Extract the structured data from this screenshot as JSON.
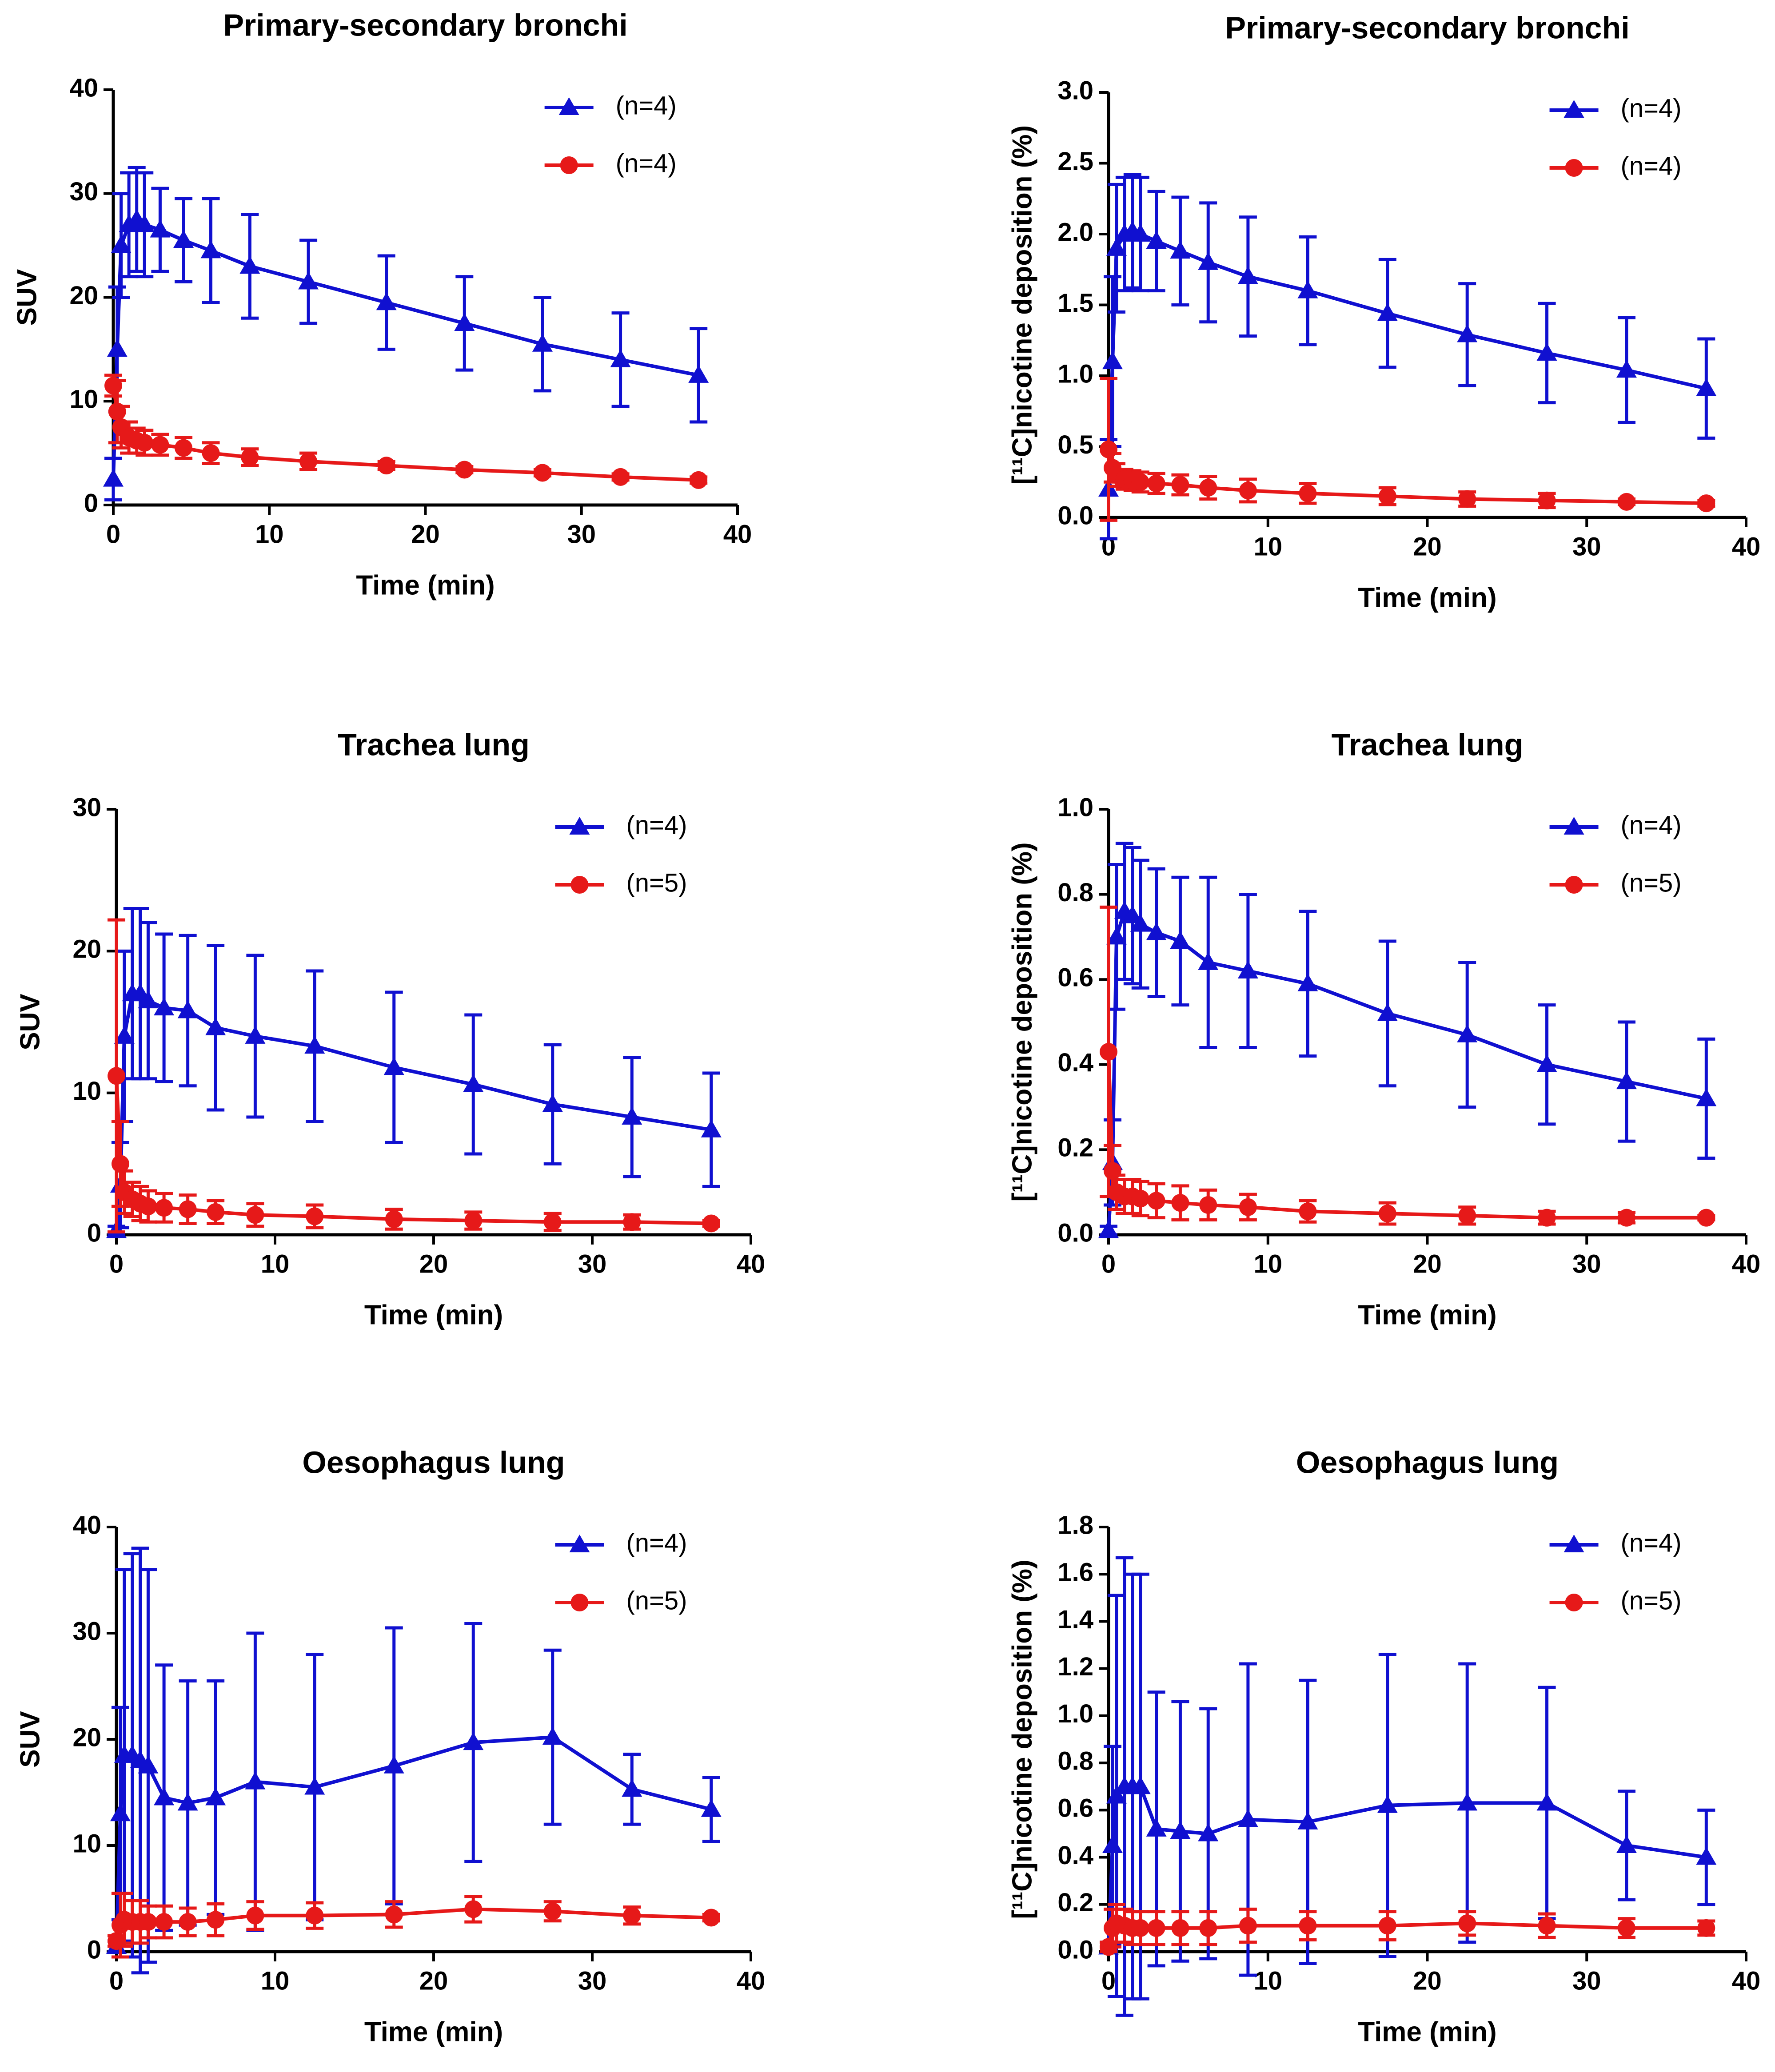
{
  "chart_data": [
    {
      "type": "line",
      "title": "Primary-secondary bronchi",
      "xlabel": "Time (min)",
      "ylabel": "SUV",
      "x": [
        0,
        0.25,
        0.5,
        1,
        1.5,
        2,
        3,
        4.5,
        6.25,
        8.75,
        12.5,
        17.5,
        22.5,
        27.5,
        32.5,
        37.5
      ],
      "xlim": [
        0,
        40
      ],
      "xticks": [
        0,
        10,
        20,
        30,
        40
      ],
      "ylim": [
        0,
        40
      ],
      "yticks": [
        0,
        10,
        20,
        30,
        40
      ],
      "series": [
        {
          "name": "(n=4)",
          "color": "#1010d0",
          "marker": "triangle",
          "values": [
            2.5,
            15,
            25,
            27,
            27.5,
            27,
            26.5,
            25.5,
            24.5,
            23,
            21.5,
            19.5,
            17.5,
            15.5,
            14,
            12.5
          ],
          "errors": [
            2,
            6,
            5,
            5,
            5,
            5,
            4,
            4,
            5,
            5,
            4,
            4.5,
            4.5,
            4.5,
            4.5,
            4.5
          ]
        },
        {
          "name": "(n=4)",
          "color": "#e61919",
          "marker": "circle",
          "values": [
            11.5,
            9,
            7.5,
            6.5,
            6.2,
            6,
            5.8,
            5.5,
            5,
            4.6,
            4.2,
            3.8,
            3.4,
            3.1,
            2.7,
            2.4
          ],
          "errors": [
            1,
            3,
            2,
            1.5,
            1.2,
            1.2,
            1,
            1,
            1,
            0.8,
            0.8,
            0.4,
            0.3,
            0.3,
            0.3,
            0.3
          ]
        }
      ]
    },
    {
      "type": "line",
      "title": "Primary-secondary bronchi",
      "xlabel": "Time (min)",
      "ylabel": "[¹¹C]nicotine deposition (%)",
      "x": [
        0,
        0.25,
        0.5,
        1,
        1.5,
        2,
        3,
        4.5,
        6.25,
        8.75,
        12.5,
        17.5,
        22.5,
        27.5,
        32.5,
        37.5
      ],
      "xlim": [
        0,
        40
      ],
      "xticks": [
        0,
        10,
        20,
        30,
        40
      ],
      "ylim": [
        0,
        3
      ],
      "yticks": [
        {
          "value": 0,
          "label": "0.0"
        },
        0.5,
        {
          "value": 1,
          "label": "1.0"
        },
        1.5,
        {
          "value": 2,
          "label": "2.0"
        },
        2.5,
        {
          "value": 3,
          "label": "3.0"
        }
      ],
      "series": [
        {
          "name": "(n=4)",
          "color": "#1010d0",
          "marker": "triangle",
          "values": [
            0.2,
            1.1,
            1.9,
            2.0,
            2.02,
            2.0,
            1.95,
            1.88,
            1.8,
            1.7,
            1.6,
            1.44,
            1.29,
            1.16,
            1.04,
            0.91
          ],
          "errors": [
            0.35,
            0.6,
            0.45,
            0.4,
            0.4,
            0.4,
            0.35,
            0.38,
            0.42,
            0.42,
            0.38,
            0.38,
            0.36,
            0.35,
            0.37,
            0.35
          ]
        },
        {
          "name": "(n=4)",
          "color": "#e61919",
          "marker": "circle",
          "values": [
            0.48,
            0.35,
            0.3,
            0.27,
            0.26,
            0.25,
            0.24,
            0.23,
            0.21,
            0.19,
            0.17,
            0.15,
            0.13,
            0.12,
            0.11,
            0.1
          ],
          "errors": [
            0.5,
            0.1,
            0.08,
            0.07,
            0.07,
            0.07,
            0.07,
            0.07,
            0.08,
            0.08,
            0.07,
            0.06,
            0.05,
            0.05,
            0.02,
            0.02
          ]
        }
      ]
    },
    {
      "type": "line",
      "title": "Trachea lung",
      "xlabel": "Time (min)",
      "ylabel": "SUV",
      "x": [
        0,
        0.25,
        0.5,
        1,
        1.5,
        2,
        3,
        4.5,
        6.25,
        8.75,
        12.5,
        17.5,
        22.5,
        27.5,
        32.5,
        37.5
      ],
      "xlim": [
        0,
        40
      ],
      "xticks": [
        0,
        10,
        20,
        30,
        40
      ],
      "ylim": [
        0,
        30
      ],
      "yticks": [
        0,
        10,
        20,
        30
      ],
      "series": [
        {
          "name": "(n=4)",
          "color": "#1010d0",
          "marker": "triangle",
          "values": [
            0.3,
            3.5,
            14,
            17,
            17,
            16.5,
            16,
            15.8,
            14.6,
            14,
            13.3,
            11.8,
            10.6,
            9.2,
            8.3,
            7.4
          ],
          "errors": [
            0.3,
            3,
            6,
            6,
            6,
            5.5,
            5.2,
            5.3,
            5.8,
            5.7,
            5.3,
            5.3,
            4.9,
            4.2,
            4.2,
            4
          ]
        },
        {
          "name": "(n=5)",
          "color": "#e61919",
          "marker": "circle",
          "values": [
            11.2,
            5,
            3,
            2.5,
            2.2,
            2,
            1.9,
            1.8,
            1.6,
            1.4,
            1.3,
            1.1,
            1,
            0.9,
            0.9,
            0.8
          ],
          "errors": [
            11,
            3,
            1.5,
            1.2,
            1.2,
            1.1,
            1,
            1,
            0.8,
            0.8,
            0.8,
            0.7,
            0.6,
            0.6,
            0.5,
            0.2
          ]
        }
      ]
    },
    {
      "type": "line",
      "title": "Trachea lung",
      "xlabel": "Time (min)",
      "ylabel": "[¹¹C]nicotine deposition (%)",
      "x": [
        0,
        0.25,
        0.5,
        1,
        1.5,
        2,
        3,
        4.5,
        6.25,
        8.75,
        12.5,
        17.5,
        22.5,
        27.5,
        32.5,
        37.5
      ],
      "xlim": [
        0,
        40
      ],
      "xticks": [
        0,
        10,
        20,
        30,
        40
      ],
      "ylim": [
        0,
        1
      ],
      "yticks": [
        {
          "value": 0,
          "label": "0.0"
        },
        0.2,
        0.4,
        0.6,
        0.8,
        {
          "value": 1,
          "label": "1.0"
        }
      ],
      "series": [
        {
          "name": "(n=4)",
          "color": "#1010d0",
          "marker": "triangle",
          "values": [
            0.01,
            0.17,
            0.7,
            0.76,
            0.75,
            0.73,
            0.71,
            0.69,
            0.64,
            0.62,
            0.59,
            0.52,
            0.47,
            0.4,
            0.36,
            0.32
          ],
          "errors": [
            0.01,
            0.1,
            0.17,
            0.16,
            0.16,
            0.15,
            0.15,
            0.15,
            0.2,
            0.18,
            0.17,
            0.17,
            0.17,
            0.14,
            0.14,
            0.14
          ]
        },
        {
          "name": "(n=5)",
          "color": "#e61919",
          "marker": "circle",
          "values": [
            0.43,
            0.15,
            0.1,
            0.09,
            0.09,
            0.085,
            0.08,
            0.075,
            0.07,
            0.065,
            0.055,
            0.05,
            0.045,
            0.04,
            0.04,
            0.04
          ],
          "errors": [
            0.34,
            0.06,
            0.04,
            0.04,
            0.04,
            0.04,
            0.04,
            0.04,
            0.035,
            0.03,
            0.025,
            0.025,
            0.02,
            0.015,
            0.012,
            0.005
          ]
        }
      ]
    },
    {
      "type": "line",
      "title": "Oesophagus lung",
      "xlabel": "Time (min)",
      "ylabel": "SUV",
      "x": [
        0,
        0.25,
        0.5,
        1,
        1.5,
        2,
        3,
        4.5,
        6.25,
        8.75,
        12.5,
        17.5,
        22.5,
        27.5,
        32.5,
        37.5
      ],
      "xlim": [
        0,
        40
      ],
      "xticks": [
        0,
        10,
        20,
        30,
        40
      ],
      "ylim": [
        0,
        40
      ],
      "yticks": [
        0,
        10,
        20,
        30,
        40
      ],
      "series": [
        {
          "name": "(n=4)",
          "color": "#1010d0",
          "marker": "triangle",
          "values": [
            0.5,
            13,
            18.5,
            18.5,
            18,
            17.5,
            14.5,
            14,
            14.5,
            16,
            15.5,
            17.5,
            19.7,
            20.2,
            15.3,
            13.4
          ],
          "errors": [
            0.5,
            10,
            17.5,
            19,
            20,
            18.5,
            12.5,
            11.5,
            11,
            14,
            12.5,
            13,
            11.2,
            8.2,
            3.3,
            3
          ]
        },
        {
          "name": "(n=5)",
          "color": "#e61919",
          "marker": "circle",
          "values": [
            1,
            2.5,
            3,
            2.8,
            2.8,
            2.8,
            2.8,
            2.8,
            3,
            3.4,
            3.4,
            3.5,
            4,
            3.8,
            3.4,
            3.2
          ],
          "errors": [
            0.5,
            3,
            2.5,
            2,
            2,
            1.5,
            1.5,
            1.3,
            1.5,
            1.3,
            1.2,
            1.2,
            1.2,
            0.9,
            0.8,
            0.3
          ]
        }
      ]
    },
    {
      "type": "line",
      "title": "Oesophagus lung",
      "xlabel": "Time (min)",
      "ylabel": "[¹¹C]nicotine deposition (%)",
      "x": [
        0,
        0.25,
        0.5,
        1,
        1.5,
        2,
        3,
        4.5,
        6.25,
        8.75,
        12.5,
        17.5,
        22.5,
        27.5,
        32.5,
        37.5
      ],
      "xlim": [
        0,
        40
      ],
      "xticks": [
        0,
        10,
        20,
        30,
        40
      ],
      "ylim": [
        0,
        1.8
      ],
      "yticks": [
        {
          "value": 0,
          "label": "0.0"
        },
        0.2,
        0.4,
        0.6,
        0.8,
        {
          "value": 1,
          "label": "1.0"
        },
        1.2,
        1.4,
        1.6,
        1.8
      ],
      "series": [
        {
          "name": "(n=4)",
          "color": "#1010d0",
          "marker": "triangle",
          "values": [
            0.02,
            0.45,
            0.66,
            0.7,
            0.7,
            0.7,
            0.52,
            0.51,
            0.5,
            0.56,
            0.55,
            0.62,
            0.63,
            0.63,
            0.45,
            0.4
          ],
          "errors": [
            0.02,
            0.42,
            0.85,
            0.97,
            0.9,
            0.9,
            0.58,
            0.55,
            0.53,
            0.66,
            0.6,
            0.64,
            0.59,
            0.49,
            0.23,
            0.2
          ]
        },
        {
          "name": "(n=5)",
          "color": "#e61919",
          "marker": "circle",
          "values": [
            0.02,
            0.1,
            0.12,
            0.11,
            0.1,
            0.1,
            0.1,
            0.1,
            0.1,
            0.11,
            0.11,
            0.11,
            0.12,
            0.11,
            0.1,
            0.1
          ],
          "errors": [
            0.02,
            0.08,
            0.08,
            0.07,
            0.07,
            0.07,
            0.07,
            0.07,
            0.07,
            0.07,
            0.06,
            0.06,
            0.05,
            0.05,
            0.04,
            0.03
          ]
        }
      ]
    }
  ]
}
